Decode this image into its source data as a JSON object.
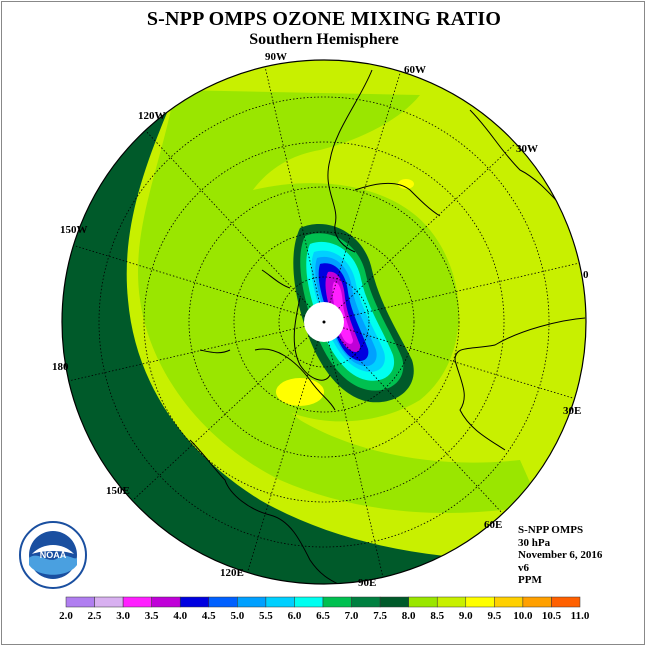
{
  "title": "S-NPP OMPS OZONE MIXING RATIO",
  "subtitle": "Southern Hemisphere",
  "info": {
    "instrument": "S-NPP OMPS",
    "level": "30 hPa",
    "date": "November 6, 2016",
    "version": "v6",
    "units": "PPM"
  },
  "longitude_labels": [
    "90W",
    "60W",
    "30W",
    "0",
    "30E",
    "60E",
    "90E",
    "120E",
    "150E",
    "180",
    "150W",
    "120W"
  ],
  "logo_text": "NOAA",
  "colorbar": {
    "ticks": [
      "2.0",
      "2.5",
      "3.0",
      "3.5",
      "4.0",
      "4.5",
      "5.0",
      "5.5",
      "6.0",
      "6.5",
      "7.0",
      "7.5",
      "8.0",
      "8.5",
      "9.0",
      "9.5",
      "10.0",
      "10.5",
      "11.0"
    ],
    "colors": [
      "#b07ef0",
      "#d8b0f0",
      "#ff20ff",
      "#c000d8",
      "#0000e0",
      "#0060ff",
      "#00a0ff",
      "#00d0ff",
      "#00fff0",
      "#00c050",
      "#008040",
      "#005a2a",
      "#9ae600",
      "#c8f000",
      "#ffff00",
      "#ffd000",
      "#ffa000",
      "#ff6000",
      "#ff0000",
      "#7a4a2a"
    ]
  }
}
